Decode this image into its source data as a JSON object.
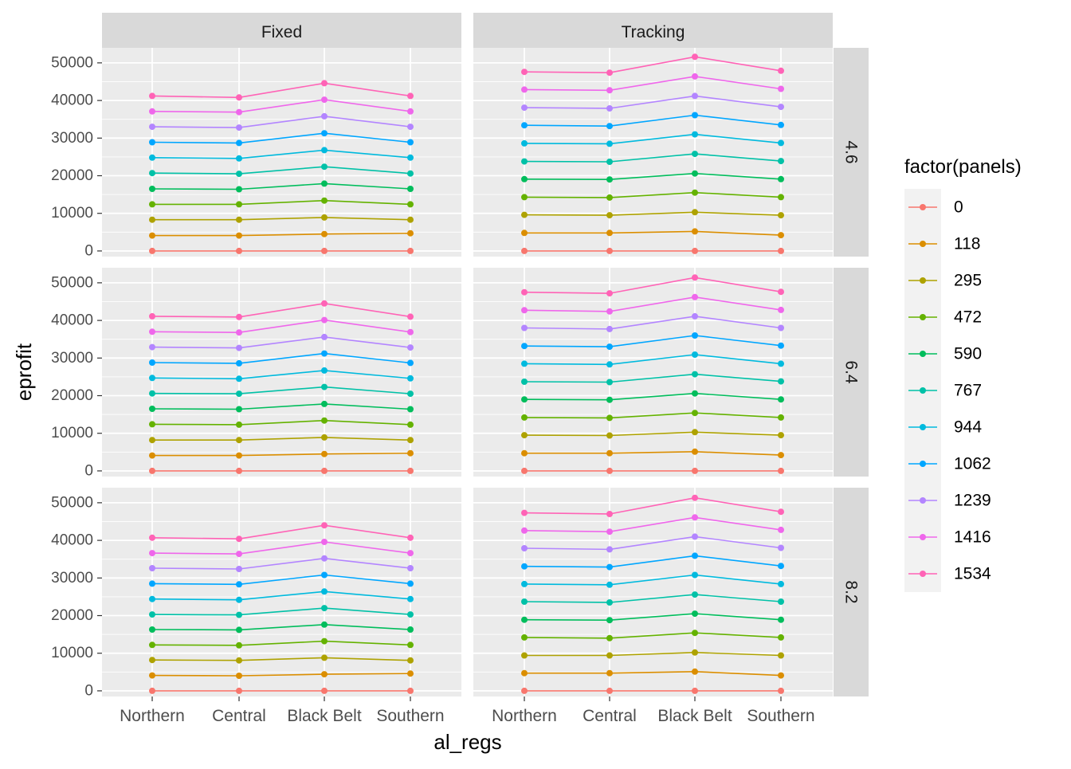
{
  "chart_data": {
    "type": "line",
    "xlabel": "al_regs",
    "ylabel": "eprofit",
    "categories": [
      "Northern",
      "Central",
      "Black Belt",
      "Southern"
    ],
    "y_ticks": [
      0,
      10000,
      20000,
      30000,
      40000,
      50000
    ],
    "ylim": [
      -1500,
      54000
    ],
    "grid": true,
    "legend": {
      "title": "factor(panels)",
      "position": "right",
      "entries": [
        "0",
        "118",
        "295",
        "472",
        "590",
        "767",
        "944",
        "1062",
        "1239",
        "1416",
        "1534"
      ]
    },
    "series_colors": [
      "#F8766D",
      "#DB8E00",
      "#AEA200",
      "#64B200",
      "#00BD5C",
      "#00C1A7",
      "#00BADE",
      "#00A6FF",
      "#B385FF",
      "#EF67EB",
      "#FF63B6"
    ],
    "facet_columns": [
      "Fixed",
      "Tracking"
    ],
    "facet_rows": [
      "4.6",
      "6.4",
      "8.2"
    ],
    "panels": [
      {
        "col": "Fixed",
        "row": "4.6",
        "series": [
          {
            "name": "0",
            "values": [
              0,
              0,
              0,
              0
            ]
          },
          {
            "name": "118",
            "values": [
              4100,
              4100,
              4500,
              4700
            ]
          },
          {
            "name": "295",
            "values": [
              8300,
              8300,
              8900,
              8300
            ]
          },
          {
            "name": "472",
            "values": [
              12400,
              12400,
              13400,
              12400
            ]
          },
          {
            "name": "590",
            "values": [
              16500,
              16400,
              17900,
              16500
            ]
          },
          {
            "name": "767",
            "values": [
              20700,
              20500,
              22400,
              20600
            ]
          },
          {
            "name": "944",
            "values": [
              24800,
              24600,
              26800,
              24800
            ]
          },
          {
            "name": "1062",
            "values": [
              28900,
              28700,
              31300,
              28900
            ]
          },
          {
            "name": "1239",
            "values": [
              33000,
              32800,
              35800,
              33000
            ]
          },
          {
            "name": "1416",
            "values": [
              37100,
              36900,
              40200,
              37100
            ]
          },
          {
            "name": "1534",
            "values": [
              41200,
              40800,
              44600,
              41200
            ]
          }
        ]
      },
      {
        "col": "Tracking",
        "row": "4.6",
        "series": [
          {
            "name": "0",
            "values": [
              0,
              0,
              0,
              0
            ]
          },
          {
            "name": "118",
            "values": [
              4800,
              4800,
              5200,
              4200
            ]
          },
          {
            "name": "295",
            "values": [
              9600,
              9500,
              10300,
              9500
            ]
          },
          {
            "name": "472",
            "values": [
              14300,
              14200,
              15500,
              14300
            ]
          },
          {
            "name": "590",
            "values": [
              19100,
              19000,
              20600,
              19100
            ]
          },
          {
            "name": "767",
            "values": [
              23800,
              23700,
              25800,
              23900
            ]
          },
          {
            "name": "944",
            "values": [
              28600,
              28500,
              31000,
              28700
            ]
          },
          {
            "name": "1062",
            "values": [
              33400,
              33200,
              36100,
              33500
            ]
          },
          {
            "name": "1239",
            "values": [
              38100,
              37900,
              41200,
              38300
            ]
          },
          {
            "name": "1416",
            "values": [
              42900,
              42700,
              46400,
              43100
            ]
          },
          {
            "name": "1534",
            "values": [
              47600,
              47400,
              51600,
              47900
            ]
          }
        ]
      },
      {
        "col": "Fixed",
        "row": "6.4",
        "series": [
          {
            "name": "0",
            "values": [
              0,
              0,
              0,
              0
            ]
          },
          {
            "name": "118",
            "values": [
              4100,
              4100,
              4500,
              4700
            ]
          },
          {
            "name": "295",
            "values": [
              8200,
              8200,
              8900,
              8200
            ]
          },
          {
            "name": "472",
            "values": [
              12400,
              12300,
              13400,
              12300
            ]
          },
          {
            "name": "590",
            "values": [
              16500,
              16400,
              17800,
              16400
            ]
          },
          {
            "name": "767",
            "values": [
              20600,
              20500,
              22300,
              20500
            ]
          },
          {
            "name": "944",
            "values": [
              24700,
              24500,
              26700,
              24600
            ]
          },
          {
            "name": "1062",
            "values": [
              28800,
              28600,
              31200,
              28700
            ]
          },
          {
            "name": "1239",
            "values": [
              32900,
              32700,
              35600,
              32800
            ]
          },
          {
            "name": "1416",
            "values": [
              37000,
              36800,
              40100,
              36900
            ]
          },
          {
            "name": "1534",
            "values": [
              41100,
              40900,
              44500,
              41000
            ]
          }
        ]
      },
      {
        "col": "Tracking",
        "row": "6.4",
        "series": [
          {
            "name": "0",
            "values": [
              0,
              0,
              0,
              0
            ]
          },
          {
            "name": "118",
            "values": [
              4700,
              4700,
              5100,
              4200
            ]
          },
          {
            "name": "295",
            "values": [
              9500,
              9400,
              10300,
              9500
            ]
          },
          {
            "name": "472",
            "values": [
              14200,
              14100,
              15400,
              14200
            ]
          },
          {
            "name": "590",
            "values": [
              19000,
              18900,
              20600,
              19000
            ]
          },
          {
            "name": "767",
            "values": [
              23700,
              23600,
              25700,
              23800
            ]
          },
          {
            "name": "944",
            "values": [
              28500,
              28300,
              30900,
              28500
            ]
          },
          {
            "name": "1062",
            "values": [
              33200,
              33000,
              36000,
              33300
            ]
          },
          {
            "name": "1239",
            "values": [
              38000,
              37700,
              41100,
              38000
            ]
          },
          {
            "name": "1416",
            "values": [
              42700,
              42400,
              46200,
              42800
            ]
          },
          {
            "name": "1534",
            "values": [
              47500,
              47200,
              51400,
              47600
            ]
          }
        ]
      },
      {
        "col": "Fixed",
        "row": "8.2",
        "series": [
          {
            "name": "0",
            "values": [
              0,
              0,
              0,
              0
            ]
          },
          {
            "name": "118",
            "values": [
              4100,
              4000,
              4400,
              4600
            ]
          },
          {
            "name": "295",
            "values": [
              8200,
              8100,
              8800,
              8100
            ]
          },
          {
            "name": "472",
            "values": [
              12200,
              12100,
              13200,
              12200
            ]
          },
          {
            "name": "590",
            "values": [
              16300,
              16200,
              17600,
              16300
            ]
          },
          {
            "name": "767",
            "values": [
              20300,
              20200,
              22000,
              20300
            ]
          },
          {
            "name": "944",
            "values": [
              24400,
              24200,
              26400,
              24400
            ]
          },
          {
            "name": "1062",
            "values": [
              28500,
              28300,
              30800,
              28500
            ]
          },
          {
            "name": "1239",
            "values": [
              32600,
              32400,
              35200,
              32600
            ]
          },
          {
            "name": "1416",
            "values": [
              36600,
              36400,
              39600,
              36600
            ]
          },
          {
            "name": "1534",
            "values": [
              40700,
              40400,
              44000,
              40700
            ]
          }
        ]
      },
      {
        "col": "Tracking",
        "row": "8.2",
        "series": [
          {
            "name": "0",
            "values": [
              0,
              0,
              0,
              0
            ]
          },
          {
            "name": "118",
            "values": [
              4700,
              4700,
              5100,
              4100
            ]
          },
          {
            "name": "295",
            "values": [
              9400,
              9400,
              10200,
              9400
            ]
          },
          {
            "name": "472",
            "values": [
              14200,
              14000,
              15400,
              14200
            ]
          },
          {
            "name": "590",
            "values": [
              18900,
              18800,
              20500,
              18900
            ]
          },
          {
            "name": "767",
            "values": [
              23700,
              23500,
              25600,
              23700
            ]
          },
          {
            "name": "944",
            "values": [
              28400,
              28200,
              30800,
              28400
            ]
          },
          {
            "name": "1062",
            "values": [
              33100,
              32900,
              35900,
              33200
            ]
          },
          {
            "name": "1239",
            "values": [
              37900,
              37600,
              41000,
              38000
            ]
          },
          {
            "name": "1416",
            "values": [
              42600,
              42300,
              46100,
              42800
            ]
          },
          {
            "name": "1534",
            "values": [
              47300,
              47000,
              51300,
              47600
            ]
          }
        ]
      }
    ]
  }
}
